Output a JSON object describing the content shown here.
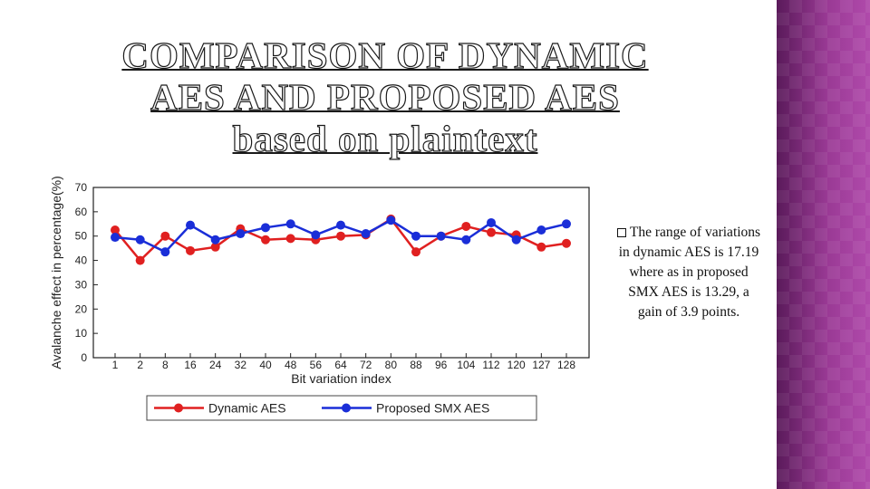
{
  "slide": {
    "title_lines": [
      "COMPARISON OF DYNAMIC",
      "AES AND PROPOSED AES",
      "based on plaintext"
    ],
    "note": "The range of variations in dynamic AES is 17.19 where as in proposed SMX AES is 13.29, a gain of 3.9 points.",
    "accent_color": "#9a3a95"
  },
  "chart_data": {
    "type": "line",
    "title": "",
    "xlabel": "Bit variation index",
    "ylabel": "Avalanche effect in percentage(%)",
    "categories": [
      "1",
      "2",
      "8",
      "16",
      "24",
      "32",
      "40",
      "48",
      "56",
      "64",
      "72",
      "80",
      "88",
      "96",
      "104",
      "112",
      "120",
      "127",
      "128"
    ],
    "ylim": [
      0,
      70
    ],
    "yticks": [
      0,
      10,
      20,
      30,
      40,
      50,
      60,
      70
    ],
    "grid": false,
    "legend": "bottom",
    "series": [
      {
        "name": "Dynamic AES",
        "color": "#e02020",
        "values": [
          52.5,
          40,
          50,
          44,
          45.5,
          53,
          48.5,
          49,
          48.5,
          50,
          50.5,
          57,
          43.5,
          50,
          54,
          51.5,
          50.5,
          45.5,
          47
        ]
      },
      {
        "name": "Proposed SMX AES",
        "color": "#1a2ed8",
        "values": [
          49.5,
          48.5,
          43.5,
          54.5,
          48.5,
          51,
          53.5,
          55,
          50.5,
          54.5,
          51,
          56.5,
          50,
          50,
          48.5,
          55.5,
          48.5,
          52.5,
          55
        ]
      }
    ]
  }
}
